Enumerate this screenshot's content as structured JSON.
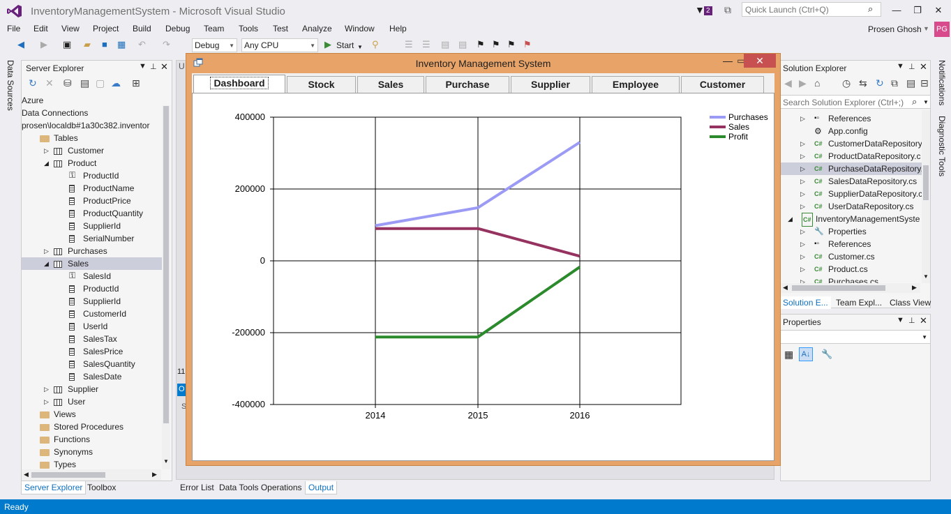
{
  "window": {
    "title": "InventoryManagementSystem - Microsoft Visual Studio",
    "notification_count": "2",
    "quick_launch_placeholder": "Quick Launch (Ctrl+Q)",
    "user_name": "Prosen Ghosh",
    "user_initials": "PG"
  },
  "menu": [
    "File",
    "Edit",
    "View",
    "Project",
    "Build",
    "Debug",
    "Team",
    "Tools",
    "Test",
    "Analyze",
    "Window",
    "Help"
  ],
  "toolbar": {
    "config": "Debug",
    "platform": "Any CPU",
    "start_label": "Start"
  },
  "left_strip": {
    "data_sources": "Data Sources"
  },
  "server_explorer": {
    "title": "Server Explorer",
    "rows": [
      {
        "label": "Azure",
        "level": 0,
        "icon": "none",
        "expander": ""
      },
      {
        "label": "Data Connections",
        "level": 0,
        "icon": "none",
        "expander": ""
      },
      {
        "label": "prosen\\localdb#1a30c382.inventor",
        "level": 0,
        "icon": "none",
        "expander": ""
      },
      {
        "label": "Tables",
        "level": 1,
        "icon": "folder",
        "expander": ""
      },
      {
        "label": "Customer",
        "level": 2,
        "icon": "table",
        "expander": "closed"
      },
      {
        "label": "Product",
        "level": 2,
        "icon": "table",
        "expander": "open"
      },
      {
        "label": "ProductId",
        "level": 3,
        "icon": "key",
        "expander": ""
      },
      {
        "label": "ProductName",
        "level": 3,
        "icon": "column",
        "expander": ""
      },
      {
        "label": "ProductPrice",
        "level": 3,
        "icon": "column",
        "expander": ""
      },
      {
        "label": "ProductQuantity",
        "level": 3,
        "icon": "column",
        "expander": ""
      },
      {
        "label": "SupplierId",
        "level": 3,
        "icon": "column",
        "expander": ""
      },
      {
        "label": "SerialNumber",
        "level": 3,
        "icon": "column",
        "expander": ""
      },
      {
        "label": "Purchases",
        "level": 2,
        "icon": "table",
        "expander": "closed"
      },
      {
        "label": "Sales",
        "level": 2,
        "icon": "table",
        "expander": "open",
        "selected": true
      },
      {
        "label": "SalesId",
        "level": 3,
        "icon": "key",
        "expander": ""
      },
      {
        "label": "ProductId",
        "level": 3,
        "icon": "column",
        "expander": ""
      },
      {
        "label": "SupplierId",
        "level": 3,
        "icon": "column",
        "expander": ""
      },
      {
        "label": "CustomerId",
        "level": 3,
        "icon": "column",
        "expander": ""
      },
      {
        "label": "UserId",
        "level": 3,
        "icon": "column",
        "expander": ""
      },
      {
        "label": "SalesTax",
        "level": 3,
        "icon": "column",
        "expander": ""
      },
      {
        "label": "SalesPrice",
        "level": 3,
        "icon": "column",
        "expander": ""
      },
      {
        "label": "SalesQuantity",
        "level": 3,
        "icon": "column",
        "expander": ""
      },
      {
        "label": "SalesDate",
        "level": 3,
        "icon": "column",
        "expander": ""
      },
      {
        "label": "Supplier",
        "level": 2,
        "icon": "table",
        "expander": "closed"
      },
      {
        "label": "User",
        "level": 2,
        "icon": "table",
        "expander": "closed"
      },
      {
        "label": "Views",
        "level": 1,
        "icon": "folder",
        "expander": ""
      },
      {
        "label": "Stored Procedures",
        "level": 1,
        "icon": "folder",
        "expander": ""
      },
      {
        "label": "Functions",
        "level": 1,
        "icon": "folder",
        "expander": ""
      },
      {
        "label": "Synonyms",
        "level": 1,
        "icon": "folder",
        "expander": ""
      },
      {
        "label": "Types",
        "level": 1,
        "icon": "folder",
        "expander": ""
      }
    ],
    "tabs": [
      "Server Explorer",
      "Toolbox"
    ]
  },
  "bottom_tabs": [
    "Error List",
    "Data Tools Operations",
    "Output"
  ],
  "center_fragments": {
    "u": "U",
    "num": "11",
    "o": "O",
    "s": "S"
  },
  "solution_explorer": {
    "title": "Solution Explorer",
    "search_placeholder": "Search Solution Explorer (Ctrl+;)",
    "rows": [
      {
        "label": "References",
        "level": 1,
        "icon": "refs",
        "expander": "closed"
      },
      {
        "label": "App.config",
        "level": 1,
        "icon": "config",
        "expander": ""
      },
      {
        "label": "CustomerDataRepository",
        "level": 1,
        "icon": "cs",
        "expander": "closed"
      },
      {
        "label": "ProductDataRepository.c",
        "level": 1,
        "icon": "cs",
        "expander": "closed"
      },
      {
        "label": "PurchaseDataRepository.",
        "level": 1,
        "icon": "cs",
        "expander": "closed",
        "selected": true
      },
      {
        "label": "SalesDataRepository.cs",
        "level": 1,
        "icon": "cs",
        "expander": "closed"
      },
      {
        "label": "SupplierDataRepository.c",
        "level": 1,
        "icon": "cs",
        "expander": "closed"
      },
      {
        "label": "UserDataRepository.cs",
        "level": 1,
        "icon": "cs",
        "expander": "closed"
      },
      {
        "label": "InventoryManagementSyste",
        "level": 0,
        "icon": "csproj",
        "expander": "open"
      },
      {
        "label": "Properties",
        "level": 1,
        "icon": "wrench",
        "expander": "closed"
      },
      {
        "label": "References",
        "level": 1,
        "icon": "refs",
        "expander": "closed"
      },
      {
        "label": "Customer.cs",
        "level": 1,
        "icon": "cs",
        "expander": "closed"
      },
      {
        "label": "Product.cs",
        "level": 1,
        "icon": "cs",
        "expander": "closed"
      },
      {
        "label": "Purchases.cs",
        "level": 1,
        "icon": "cs",
        "expander": "closed"
      }
    ],
    "tabs": [
      "Solution E...",
      "Team Expl...",
      "Class View"
    ]
  },
  "properties": {
    "title": "Properties"
  },
  "right_strip": {
    "notifications": "Notifications",
    "diagnostic": "Diagnostic Tools"
  },
  "status": {
    "text": "Ready"
  },
  "dialog": {
    "title": "Inventory Management System",
    "tabs": [
      "Dashboard",
      "Stock",
      "Sales",
      "Purchase",
      "Supplier",
      "Employee",
      "Customer"
    ],
    "active_tab": 0
  },
  "chart_data": {
    "type": "line",
    "x": [
      "2014",
      "2015",
      "2016"
    ],
    "ylim": [
      -400000,
      400000
    ],
    "yticks": [
      "400000",
      "200000",
      "0",
      "-200000",
      "-400000"
    ],
    "grid": true,
    "legend": "top-right",
    "series": [
      {
        "name": "Purchases",
        "color": "#9b9bf5",
        "values": [
          98000,
          148000,
          330000
        ]
      },
      {
        "name": "Sales",
        "color": "#96325f",
        "values": [
          90000,
          90000,
          13000
        ]
      },
      {
        "name": "Profit",
        "color": "#2b8a2b",
        "values": [
          -212000,
          -212000,
          -17000
        ]
      }
    ]
  }
}
